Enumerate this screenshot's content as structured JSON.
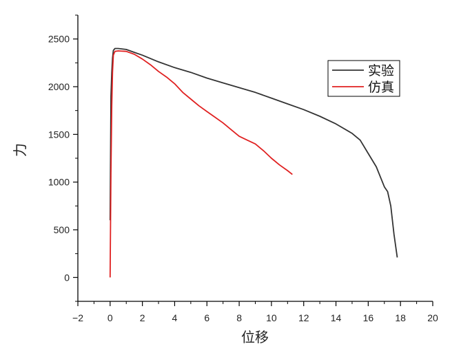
{
  "chart_data": {
    "type": "line",
    "title": "",
    "xlabel": "位移",
    "ylabel": "力",
    "xlim": [
      -2,
      20
    ],
    "ylim": [
      -250,
      2750
    ],
    "x_ticks": [
      -2,
      0,
      2,
      4,
      6,
      8,
      10,
      12,
      14,
      16,
      18,
      20
    ],
    "x_tick_labels": [
      "−2",
      "0",
      "2",
      "4",
      "6",
      "8",
      "10",
      "12",
      "14",
      "16",
      "18",
      "20"
    ],
    "y_ticks": [
      0,
      500,
      1000,
      1500,
      2000,
      2500
    ],
    "y_tick_labels": [
      "0",
      "500",
      "1000",
      "1500",
      "2000",
      "2500"
    ],
    "grid": false,
    "legend_position": "top-right",
    "series": [
      {
        "name": "实验",
        "color": "#333333",
        "x": [
          0.0,
          0.05,
          0.1,
          0.15,
          0.2,
          0.3,
          0.5,
          1.0,
          1.5,
          2.0,
          3.0,
          4.0,
          5.0,
          6.0,
          7.0,
          8.0,
          9.0,
          10.0,
          11.0,
          12.0,
          13.0,
          14.0,
          15.0,
          15.5,
          16.0,
          16.5,
          17.0,
          17.2,
          17.4,
          17.6,
          17.8
        ],
        "y": [
          600,
          1900,
          2150,
          2300,
          2380,
          2400,
          2400,
          2390,
          2360,
          2330,
          2260,
          2200,
          2150,
          2090,
          2040,
          1990,
          1940,
          1880,
          1820,
          1760,
          1690,
          1610,
          1510,
          1440,
          1300,
          1160,
          950,
          900,
          750,
          450,
          210
        ]
      },
      {
        "name": "仿真",
        "color": "#e02020",
        "x": [
          0.0,
          0.05,
          0.1,
          0.15,
          0.2,
          0.3,
          0.5,
          1.0,
          1.5,
          2.0,
          2.5,
          3.0,
          3.5,
          4.0,
          4.5,
          5.0,
          5.5,
          6.0,
          6.5,
          7.0,
          7.5,
          8.0,
          8.5,
          9.0,
          9.5,
          10.0,
          10.5,
          11.0,
          11.3
        ],
        "y": [
          0,
          1100,
          1800,
          2150,
          2330,
          2370,
          2375,
          2370,
          2340,
          2290,
          2230,
          2160,
          2100,
          2030,
          1940,
          1870,
          1800,
          1740,
          1680,
          1620,
          1550,
          1480,
          1440,
          1400,
          1330,
          1250,
          1180,
          1120,
          1080
        ]
      }
    ]
  }
}
